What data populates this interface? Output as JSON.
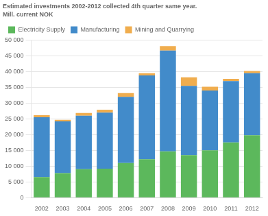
{
  "chart_data": {
    "type": "bar",
    "title": "Estimated investments 2002-2012 collected 4th quarter same year.",
    "subtitle": "Mill. current NOK",
    "categories": [
      "2002",
      "2003",
      "2004",
      "2005",
      "2006",
      "2007",
      "2008",
      "2009",
      "2010",
      "2011",
      "2012"
    ],
    "series": [
      {
        "name": "Electricity Supply",
        "color": "#5cb85c",
        "values": [
          6500,
          7800,
          9000,
          9200,
          11000,
          12200,
          14700,
          13500,
          15000,
          17500,
          19800
        ]
      },
      {
        "name": "Manufacturing",
        "color": "#428bca",
        "values": [
          19000,
          16400,
          17000,
          17800,
          21000,
          26600,
          32000,
          22000,
          19000,
          19500,
          19700
        ]
      },
      {
        "name": "Mining and Quarrying",
        "color": "#f0ad4e",
        "values": [
          700,
          500,
          900,
          900,
          1200,
          700,
          1400,
          2700,
          1200,
          700,
          700
        ]
      }
    ],
    "stacked": true,
    "ylim": [
      0,
      50000
    ],
    "yticks": [
      0,
      {
        "value": 5000,
        "label": "5 000"
      },
      {
        "value": 10000,
        "label": "10 000"
      },
      {
        "value": 15000,
        "label": "15 000"
      },
      {
        "value": 20000,
        "label": "20 000"
      },
      {
        "value": 25000,
        "label": "25 000"
      },
      {
        "value": 30000,
        "label": "30 000"
      },
      {
        "value": 35000,
        "label": "35 000"
      },
      {
        "value": 40000,
        "label": "40 000"
      },
      {
        "value": 45000,
        "label": "45 000"
      },
      {
        "value": 50000,
        "label": "50 000"
      }
    ],
    "grid": true,
    "legend": "upper left"
  }
}
